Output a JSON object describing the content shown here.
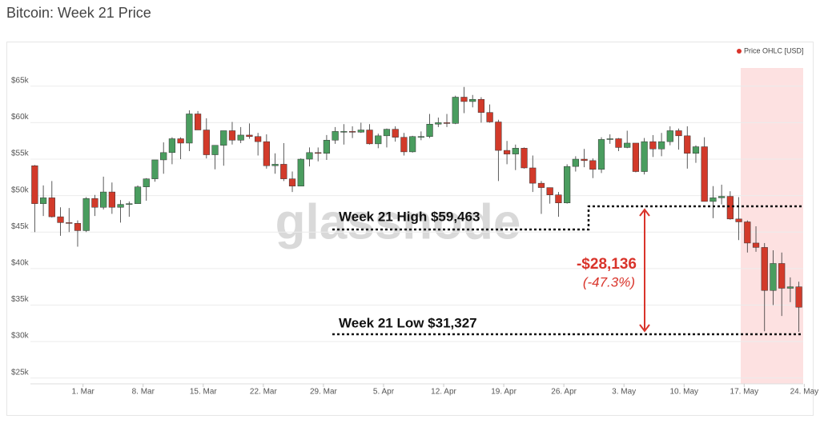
{
  "chart_data": {
    "type": "candlestick",
    "title": "Bitcoin: Week 21 Price",
    "watermark": "glassnode",
    "legend": "top-right",
    "grid": true,
    "categories": [
      "02-23",
      "02-24",
      "02-25",
      "02-26",
      "02-27",
      "02-28",
      "03-01",
      "03-02",
      "03-03",
      "03-04",
      "03-05",
      "03-06",
      "03-07",
      "03-08",
      "03-09",
      "03-10",
      "03-11",
      "03-12",
      "03-13",
      "03-14",
      "03-15",
      "03-16",
      "03-17",
      "03-18",
      "03-19",
      "03-20",
      "03-21",
      "03-22",
      "03-23",
      "03-24",
      "03-25",
      "03-26",
      "03-27",
      "03-28",
      "03-29",
      "03-30",
      "03-31",
      "04-01",
      "04-02",
      "04-03",
      "04-04",
      "04-05",
      "04-06",
      "04-07",
      "04-08",
      "04-09",
      "04-10",
      "04-11",
      "04-12",
      "04-13",
      "04-14",
      "04-15",
      "04-16",
      "04-17",
      "04-18",
      "04-19",
      "04-20",
      "04-21",
      "04-22",
      "04-23",
      "04-24",
      "04-25",
      "04-26",
      "04-27",
      "04-28",
      "04-29",
      "04-30",
      "05-01",
      "05-02",
      "05-03",
      "05-04",
      "05-05",
      "05-06",
      "05-07",
      "05-08",
      "05-09",
      "05-10",
      "05-11",
      "05-12",
      "05-13",
      "05-14",
      "05-15",
      "05-16",
      "05-17",
      "05-18",
      "05-19",
      "05-20",
      "05-21",
      "05-22",
      "05-23"
    ],
    "series": [
      {
        "name": "Price OHLC [USD]",
        "color": "#d9342b",
        "up_color": "#4a9d5f",
        "down_color": "#d23a2a",
        "open": [
          54100,
          48900,
          49700,
          47100,
          46300,
          46200,
          45200,
          49600,
          48400,
          50500,
          48400,
          48800,
          48900,
          51200,
          52300,
          54900,
          55900,
          57800,
          57200,
          61200,
          59000,
          55600,
          56900,
          58900,
          57600,
          58300,
          58100,
          57400,
          54100,
          54300,
          52300,
          51300,
          55000,
          55900,
          55800,
          57600,
          58800,
          58800,
          58700,
          59000,
          57100,
          58200,
          59100,
          58000,
          56000,
          58100,
          58100,
          59800,
          60000,
          59900,
          63500,
          62900,
          63200,
          61400,
          60100,
          56200,
          55700,
          56500,
          53800,
          51700,
          51100,
          50100,
          49000,
          54000,
          55000,
          54800,
          53600,
          57700,
          57800,
          56600,
          57200,
          53300,
          57400,
          56400,
          57400,
          58900,
          58200,
          55800,
          56700,
          49200,
          49700,
          49900,
          46800,
          46400,
          43500,
          42900,
          37000,
          40700,
          37300,
          37500
        ],
        "high": [
          54200,
          51400,
          52000,
          48400,
          48300,
          46600,
          49800,
          50100,
          52600,
          51800,
          49400,
          49200,
          51400,
          52400,
          54900,
          57300,
          58000,
          58000,
          61700,
          61600,
          60600,
          56900,
          58900,
          60100,
          59400,
          59900,
          58600,
          58400,
          55800,
          57200,
          53300,
          55100,
          56600,
          56600,
          58300,
          59400,
          59800,
          59500,
          60000,
          59800,
          58500,
          59200,
          59500,
          58600,
          58200,
          58800,
          61200,
          60700,
          61200,
          63700,
          64900,
          63800,
          63500,
          62500,
          60400,
          57500,
          57000,
          56600,
          55500,
          52000,
          51100,
          50500,
          54300,
          55400,
          56400,
          55100,
          58000,
          58400,
          57900,
          58900,
          57200,
          57900,
          58300,
          58600,
          59500,
          59200,
          59500,
          56900,
          58000,
          51300,
          51500,
          50600,
          49800,
          46600,
          45800,
          43500,
          42500,
          42200,
          38800,
          38200
        ],
        "low": [
          45000,
          47200,
          47000,
          44500,
          45000,
          43000,
          45000,
          47200,
          48100,
          47500,
          46300,
          47100,
          48900,
          49300,
          51900,
          53000,
          54300,
          55000,
          56100,
          59000,
          55100,
          53600,
          54100,
          57000,
          57200,
          57800,
          55500,
          53700,
          53000,
          52000,
          50500,
          51300,
          54000,
          54700,
          54900,
          57100,
          57000,
          57900,
          58600,
          57000,
          56500,
          56600,
          57400,
          55500,
          55900,
          57600,
          57900,
          59400,
          59400,
          59800,
          61300,
          62100,
          60000,
          60000,
          52000,
          54300,
          53500,
          53700,
          50500,
          47500,
          48900,
          47100,
          48900,
          53300,
          53900,
          52400,
          53100,
          57100,
          56100,
          56500,
          53200,
          52900,
          55300,
          55400,
          56900,
          56300,
          53700,
          54500,
          49200,
          46900,
          48800,
          46700,
          43900,
          42200,
          42300,
          31400,
          35000,
          33500,
          35400,
          31327
        ],
        "close": [
          48900,
          49700,
          47100,
          46300,
          46200,
          45200,
          49600,
          48400,
          50500,
          48400,
          48800,
          48900,
          51200,
          52300,
          54900,
          55900,
          57800,
          57200,
          61200,
          59000,
          55600,
          56900,
          58900,
          57600,
          58300,
          58100,
          57400,
          54100,
          54300,
          52300,
          51300,
          55000,
          55900,
          55800,
          57600,
          58800,
          58800,
          58700,
          59000,
          57100,
          58200,
          59100,
          58000,
          56000,
          58100,
          58100,
          59800,
          60000,
          59900,
          63500,
          62900,
          63200,
          61400,
          60100,
          56200,
          55700,
          56500,
          53800,
          51700,
          51100,
          50100,
          49000,
          54000,
          55000,
          54800,
          53600,
          57700,
          57800,
          56600,
          57200,
          53300,
          57400,
          56400,
          57400,
          58900,
          58200,
          55800,
          56700,
          49200,
          49700,
          49900,
          46800,
          46400,
          43500,
          42900,
          37000,
          40700,
          37300,
          37500,
          34700
        ]
      }
    ],
    "ylim": [
      24200,
      67500
    ],
    "yticks": [
      {
        "value": 25000,
        "label": "$25k"
      },
      {
        "value": 30000,
        "label": "$30k"
      },
      {
        "value": 35000,
        "label": "$35k"
      },
      {
        "value": 40000,
        "label": "$40k"
      },
      {
        "value": 45000,
        "label": "$45k"
      },
      {
        "value": 50000,
        "label": "$50k"
      },
      {
        "value": 55000,
        "label": "$55k"
      },
      {
        "value": 60000,
        "label": "$60k"
      },
      {
        "value": 65000,
        "label": "$65k"
      }
    ],
    "xticks": [
      {
        "value": "03-01",
        "label": "1. Mar"
      },
      {
        "value": "03-08",
        "label": "8. Mar"
      },
      {
        "value": "03-15",
        "label": "15. Mar"
      },
      {
        "value": "03-22",
        "label": "22. Mar"
      },
      {
        "value": "03-29",
        "label": "29. Mar"
      },
      {
        "value": "04-05",
        "label": "5. Apr"
      },
      {
        "value": "04-12",
        "label": "12. Apr"
      },
      {
        "value": "04-19",
        "label": "19. Apr"
      },
      {
        "value": "04-26",
        "label": "26. Apr"
      },
      {
        "value": "05-03",
        "label": "3. May"
      },
      {
        "value": "05-10",
        "label": "10. May"
      },
      {
        "value": "05-17",
        "label": "17. May"
      },
      {
        "value": "05-24",
        "label": "24. May"
      }
    ],
    "annotations": {
      "high": "Week 21 High $59,463",
      "low": "Week 21 Low $31,327",
      "change": "-$28,136",
      "change_pct": "(-47.3%)"
    }
  }
}
